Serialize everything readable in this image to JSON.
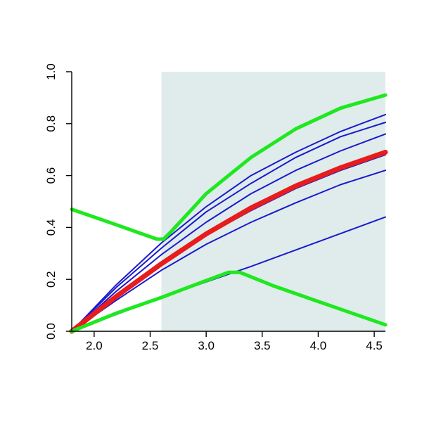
{
  "chart_data": {
    "type": "line",
    "title": "",
    "xlabel": "",
    "ylabel": "",
    "xlim": [
      1.8,
      4.6
    ],
    "ylim": [
      0.0,
      1.0
    ],
    "x_ticks": [
      2.0,
      2.5,
      3.0,
      3.5,
      4.0,
      4.5
    ],
    "x_tick_labels": [
      "2.0",
      "2.5",
      "3.0",
      "3.5",
      "4.0",
      "4.5"
    ],
    "y_ticks": [
      0.0,
      0.2,
      0.4,
      0.6,
      0.8,
      1.0
    ],
    "y_tick_labels": [
      "0.0",
      "0.2",
      "0.4",
      "0.6",
      "0.8",
      "1.0"
    ],
    "grid": false,
    "legend": "none",
    "shaded_region": {
      "x_start": 2.6,
      "x_end": 4.6,
      "color": "#dfeceb"
    },
    "colors": {
      "thin_curves": "#1a1acc",
      "mean_curve": "#e81c1c",
      "bounds": "#1ee81e"
    },
    "series": [
      {
        "role": "thin",
        "x": [
          1.8,
          2.2,
          2.6,
          3.0,
          3.4,
          3.8,
          4.2,
          4.6
        ],
        "y": [
          0.0,
          0.18,
          0.34,
          0.48,
          0.6,
          0.69,
          0.77,
          0.835
        ]
      },
      {
        "role": "thin",
        "x": [
          1.8,
          2.2,
          2.6,
          3.0,
          3.4,
          3.8,
          4.2,
          4.6
        ],
        "y": [
          0.0,
          0.17,
          0.32,
          0.46,
          0.57,
          0.67,
          0.75,
          0.805
        ]
      },
      {
        "role": "thin",
        "x": [
          1.8,
          2.2,
          2.6,
          3.0,
          3.4,
          3.8,
          4.2,
          4.6
        ],
        "y": [
          0.0,
          0.155,
          0.295,
          0.42,
          0.53,
          0.62,
          0.695,
          0.76
        ]
      },
      {
        "role": "thin",
        "x": [
          1.8,
          2.2,
          2.6,
          3.0,
          3.4,
          3.8,
          4.2,
          4.6
        ],
        "y": [
          0.0,
          0.135,
          0.26,
          0.37,
          0.465,
          0.55,
          0.62,
          0.68
        ]
      },
      {
        "role": "thin",
        "x": [
          1.8,
          2.2,
          2.6,
          3.0,
          3.4,
          3.8,
          4.2,
          4.6
        ],
        "y": [
          0.0,
          0.12,
          0.235,
          0.335,
          0.42,
          0.495,
          0.565,
          0.62
        ]
      },
      {
        "role": "thin",
        "x": [
          1.8,
          2.6,
          3.4,
          4.6
        ],
        "y": [
          0.0,
          0.13,
          0.25,
          0.44
        ]
      },
      {
        "role": "mean",
        "x": [
          1.8,
          2.2,
          2.6,
          3.0,
          3.4,
          3.8,
          4.2,
          4.6
        ],
        "y": [
          0.0,
          0.135,
          0.26,
          0.375,
          0.475,
          0.56,
          0.63,
          0.69
        ]
      },
      {
        "role": "upper",
        "x": [
          1.8,
          2.2,
          2.56,
          2.62,
          2.7,
          3.0,
          3.4,
          3.8,
          4.2,
          4.6
        ],
        "y": [
          0.47,
          0.41,
          0.355,
          0.355,
          0.39,
          0.53,
          0.67,
          0.78,
          0.86,
          0.91
        ]
      },
      {
        "role": "lower",
        "x": [
          1.8,
          2.2,
          2.6,
          3.0,
          3.2,
          3.3,
          3.6,
          4.0,
          4.3,
          4.6
        ],
        "y": [
          0.0,
          0.07,
          0.13,
          0.195,
          0.227,
          0.227,
          0.175,
          0.115,
          0.07,
          0.025
        ]
      }
    ]
  }
}
